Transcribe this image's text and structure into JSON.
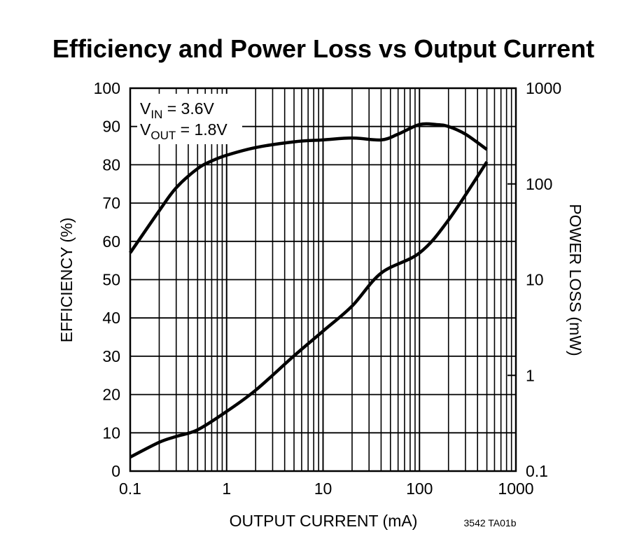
{
  "chart_data": {
    "type": "line",
    "title": "Efficiency and Power Loss vs Output Current",
    "xlabel": "OUTPUT CURRENT (mA)",
    "ylabel": "EFFICIENCY (%)",
    "y2label": "POWER LOSS (mW)",
    "xscale": "log",
    "xlim": [
      0.1,
      1000
    ],
    "ylim": [
      0,
      100
    ],
    "y2scale": "log",
    "y2lim": [
      0.1,
      1000
    ],
    "grid": true,
    "xticks": [
      "0.1",
      "1",
      "10",
      "100",
      "1000"
    ],
    "yticks": [
      "0",
      "10",
      "20",
      "30",
      "40",
      "50",
      "60",
      "70",
      "80",
      "90",
      "100"
    ],
    "y2ticks": [
      "0.1",
      "1",
      "10",
      "100",
      "1000"
    ],
    "annotation": {
      "line1": {
        "main": "V",
        "sub": "IN",
        "rest": " = 3.6V"
      },
      "line2": {
        "main": "V",
        "sub": "OUT",
        "rest": " = 1.8V"
      }
    },
    "footnote": "3542 TA01b",
    "series": [
      {
        "axis": "left",
        "x": [
          0.1,
          0.2,
          0.3,
          0.5,
          0.7,
          1,
          2,
          5,
          10,
          20,
          40,
          60,
          100,
          150,
          200,
          300,
          500
        ],
        "y": [
          57,
          68,
          74,
          79,
          81,
          82.5,
          84.5,
          86,
          86.5,
          87,
          86.5,
          88,
          90.5,
          90.5,
          90,
          88,
          84
        ]
      },
      {
        "axis": "right",
        "x": [
          0.1,
          0.2,
          0.3,
          0.5,
          1,
          2,
          5,
          10,
          20,
          40,
          100,
          200,
          500
        ],
        "y": [
          0.14,
          0.2,
          0.23,
          0.27,
          0.42,
          0.7,
          1.6,
          2.9,
          5.3,
          11.7,
          19,
          42,
          170
        ]
      }
    ],
    "color": "#000000"
  }
}
